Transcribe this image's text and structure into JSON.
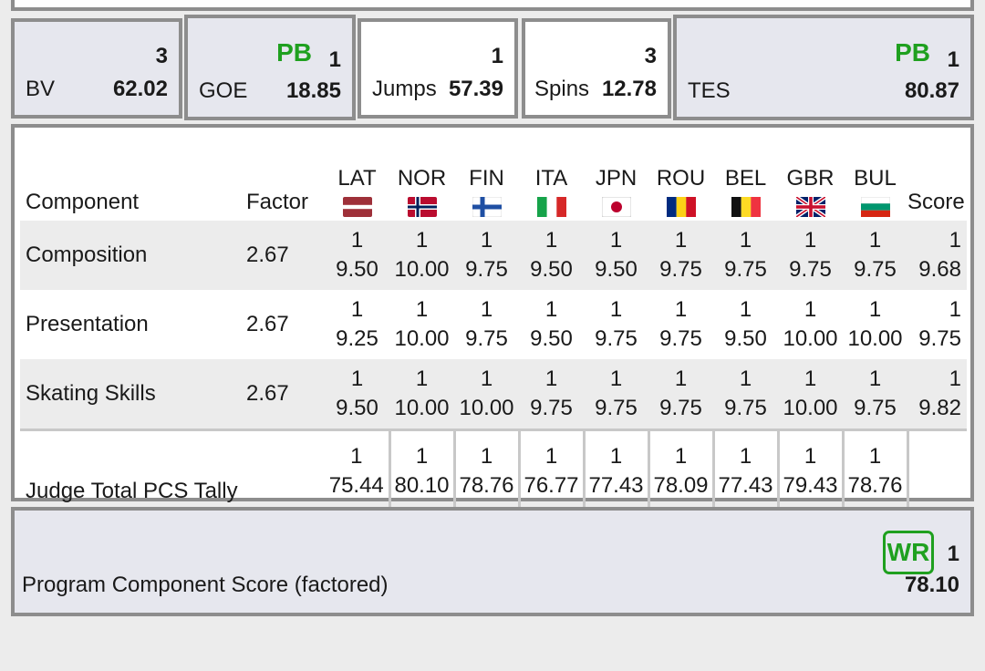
{
  "stats": {
    "bv": {
      "count": "3",
      "label": "BV",
      "value": "62.02"
    },
    "goe": {
      "badge": "PB",
      "count": "1",
      "label": "GOE",
      "value": "18.85"
    },
    "jumps": {
      "count": "1",
      "label": "Jumps",
      "value": "57.39"
    },
    "spins": {
      "count": "3",
      "label": "Spins",
      "value": "12.78"
    },
    "tes": {
      "badge": "PB",
      "count": "1",
      "label": "TES",
      "value": "80.87"
    }
  },
  "pcs": {
    "headers": {
      "component": "Component",
      "factor": "Factor",
      "score": "Score"
    },
    "judges": [
      {
        "code": "LAT",
        "flag": "latvia-flag-icon"
      },
      {
        "code": "NOR",
        "flag": "norway-flag-icon"
      },
      {
        "code": "FIN",
        "flag": "finland-flag-icon"
      },
      {
        "code": "ITA",
        "flag": "italy-flag-icon"
      },
      {
        "code": "JPN",
        "flag": "japan-flag-icon"
      },
      {
        "code": "ROU",
        "flag": "romania-flag-icon"
      },
      {
        "code": "BEL",
        "flag": "belgium-flag-icon"
      },
      {
        "code": "GBR",
        "flag": "uk-flag-icon"
      },
      {
        "code": "BUL",
        "flag": "bulgaria-flag-icon"
      }
    ],
    "rows": [
      {
        "name": "Composition",
        "factor": "2.67",
        "marks": [
          {
            "rank": "1",
            "value": "9.50"
          },
          {
            "rank": "1",
            "value": "10.00"
          },
          {
            "rank": "1",
            "value": "9.75"
          },
          {
            "rank": "1",
            "value": "9.50"
          },
          {
            "rank": "1",
            "value": "9.50"
          },
          {
            "rank": "1",
            "value": "9.75"
          },
          {
            "rank": "1",
            "value": "9.75"
          },
          {
            "rank": "1",
            "value": "9.75"
          },
          {
            "rank": "1",
            "value": "9.75"
          }
        ],
        "score": {
          "rank": "1",
          "value": "9.68"
        }
      },
      {
        "name": "Presentation",
        "factor": "2.67",
        "marks": [
          {
            "rank": "1",
            "value": "9.25"
          },
          {
            "rank": "1",
            "value": "10.00"
          },
          {
            "rank": "1",
            "value": "9.75"
          },
          {
            "rank": "1",
            "value": "9.50"
          },
          {
            "rank": "1",
            "value": "9.75"
          },
          {
            "rank": "1",
            "value": "9.75"
          },
          {
            "rank": "1",
            "value": "9.50"
          },
          {
            "rank": "1",
            "value": "10.00"
          },
          {
            "rank": "1",
            "value": "10.00"
          }
        ],
        "score": {
          "rank": "1",
          "value": "9.75"
        }
      },
      {
        "name": "Skating Skills",
        "factor": "2.67",
        "marks": [
          {
            "rank": "1",
            "value": "9.50"
          },
          {
            "rank": "1",
            "value": "10.00"
          },
          {
            "rank": "1",
            "value": "10.00"
          },
          {
            "rank": "1",
            "value": "9.75"
          },
          {
            "rank": "1",
            "value": "9.75"
          },
          {
            "rank": "1",
            "value": "9.75"
          },
          {
            "rank": "1",
            "value": "9.75"
          },
          {
            "rank": "1",
            "value": "10.00"
          },
          {
            "rank": "1",
            "value": "9.75"
          }
        ],
        "score": {
          "rank": "1",
          "value": "9.82"
        }
      }
    ],
    "tally": {
      "label": "Judge Total PCS Tally",
      "marks": [
        {
          "rank": "1",
          "value": "75.44"
        },
        {
          "rank": "1",
          "value": "80.10"
        },
        {
          "rank": "1",
          "value": "78.76"
        },
        {
          "rank": "1",
          "value": "76.77"
        },
        {
          "rank": "1",
          "value": "77.43"
        },
        {
          "rank": "1",
          "value": "78.09"
        },
        {
          "rank": "1",
          "value": "77.43"
        },
        {
          "rank": "1",
          "value": "79.43"
        },
        {
          "rank": "1",
          "value": "78.76"
        }
      ]
    }
  },
  "pcs_total": {
    "label": "Program Component Score (factored)",
    "badge": "WR",
    "rank": "1",
    "value": "78.10"
  },
  "colors": {
    "record_green": "#1fa01f",
    "border": "#8d8d8d",
    "panel": "#e6e7ee"
  }
}
